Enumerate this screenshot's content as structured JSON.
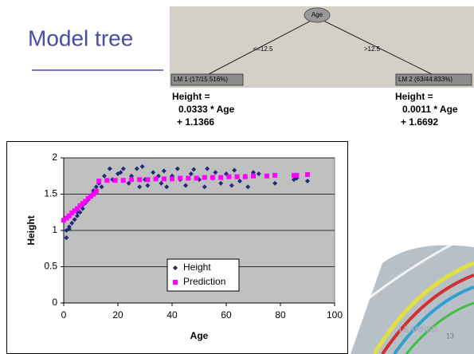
{
  "title": "Model tree",
  "slide_number": "13",
  "tree": {
    "root": "Age",
    "edges": [
      "<=12.5",
      ">12.5"
    ],
    "leaves": [
      {
        "label": "LM 1 (17/15.516%)",
        "equation": [
          "Height =",
          "0.0333 * Age",
          "+ 1.1366"
        ]
      },
      {
        "label": "LM 2 (63/44.833%)",
        "equation": [
          "Height =",
          "0.0011 * Age",
          "+ 1.6692"
        ]
      }
    ]
  },
  "chart_data": {
    "type": "scatter",
    "xlabel": "Age",
    "ylabel": "Height",
    "xlim": [
      0,
      100
    ],
    "xticks": [
      0,
      20,
      40,
      60,
      80,
      100
    ],
    "ylim": [
      0,
      2
    ],
    "yticks": [
      0,
      0.5,
      1,
      1.5,
      2
    ],
    "grid": true,
    "legend": "lower center",
    "series": [
      {
        "name": "Height",
        "color": "#1f2a7a",
        "marker": "diamond",
        "x": [
          1,
          1,
          2,
          2,
          3,
          4,
          5,
          5,
          6,
          7,
          7,
          8,
          9,
          10,
          11,
          12,
          13,
          14,
          15,
          17,
          18,
          20,
          21,
          22,
          24,
          25,
          27,
          28,
          29,
          30,
          31,
          33,
          35,
          36,
          37,
          38,
          40,
          42,
          43,
          45,
          47,
          48,
          50,
          52,
          53,
          55,
          56,
          58,
          60,
          62,
          63,
          65,
          67,
          68,
          70,
          72,
          75,
          78,
          85,
          86,
          90
        ],
        "values": [
          1.0,
          0.9,
          1.02,
          1.05,
          1.1,
          1.15,
          1.2,
          1.25,
          1.25,
          1.3,
          1.35,
          1.38,
          1.42,
          1.48,
          1.55,
          1.6,
          1.65,
          1.6,
          1.75,
          1.85,
          1.7,
          1.78,
          1.8,
          1.85,
          1.65,
          1.75,
          1.85,
          1.6,
          1.88,
          1.7,
          1.62,
          1.8,
          1.75,
          1.65,
          1.82,
          1.6,
          1.75,
          1.85,
          1.7,
          1.62,
          1.78,
          1.84,
          1.7,
          1.6,
          1.85,
          1.72,
          1.8,
          1.65,
          1.78,
          1.62,
          1.83,
          1.68,
          1.75,
          1.6,
          1.8,
          1.78,
          1.75,
          1.65,
          1.7,
          1.72,
          1.68
        ]
      },
      {
        "name": "Prediction",
        "color": "#ff00ff",
        "marker": "square",
        "x": [
          0,
          1,
          2,
          3,
          4,
          5,
          6,
          7,
          8,
          9,
          10,
          11,
          12,
          13,
          16,
          19,
          22,
          25,
          28,
          31,
          34,
          37,
          40,
          43,
          46,
          49,
          52,
          55,
          58,
          61,
          64,
          67,
          70,
          75,
          78,
          85,
          86,
          90
        ],
        "values": [
          1.14,
          1.17,
          1.2,
          1.24,
          1.27,
          1.3,
          1.34,
          1.37,
          1.4,
          1.44,
          1.47,
          1.5,
          1.54,
          1.68,
          1.69,
          1.69,
          1.69,
          1.7,
          1.7,
          1.7,
          1.71,
          1.71,
          1.71,
          1.72,
          1.72,
          1.72,
          1.73,
          1.73,
          1.73,
          1.74,
          1.74,
          1.74,
          1.75,
          1.75,
          1.76,
          1.76,
          1.76,
          1.77
        ]
      }
    ]
  }
}
